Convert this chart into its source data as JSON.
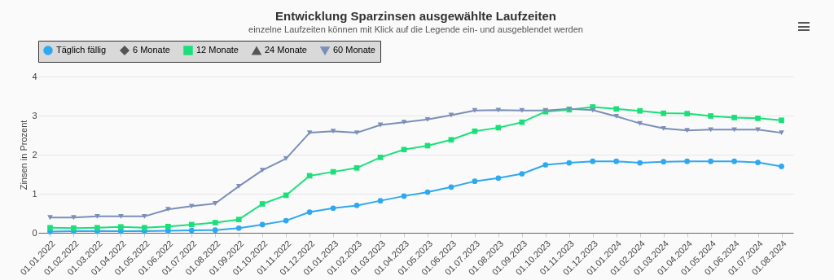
{
  "chart_data": {
    "type": "line",
    "title": "Entwicklung Sparzinsen ausgewählte Laufzeiten",
    "subtitle": "einzelne Laufzeiten können mit Klick auf die Legende ein- und ausgeblendet werden",
    "ylabel": "Zinsen in Prozent",
    "categories": [
      "01.01.2022",
      "01.02.2022",
      "01.03.2022",
      "01.04.2022",
      "01.05.2022",
      "01.06.2022",
      "01.07.2022",
      "01.08.2022",
      "01.09.2022",
      "01.10.2022",
      "01.11.2022",
      "01.12.2022",
      "01.01.2023",
      "01.02.2023",
      "01.03.2023",
      "01.04.2023",
      "01.05.2023",
      "01.06.2023",
      "01.07.2023",
      "01.08.2023",
      "01.09.2023",
      "01.10.2023",
      "01.11.2023",
      "01.12.2023",
      "01.01.2024",
      "01.02.2024",
      "01.03.2024",
      "01.04.2024",
      "01.05.2024",
      "01.06.2024",
      "01.07.2024",
      "01.08.2024"
    ],
    "series": [
      {
        "name": "Täglich fällig",
        "color": "#2ea8f0",
        "marker": "circle",
        "values": [
          0.03,
          0.04,
          0.04,
          0.04,
          0.04,
          0.05,
          0.06,
          0.07,
          0.12,
          0.21,
          0.31,
          0.53,
          0.63,
          0.7,
          0.82,
          0.94,
          1.04,
          1.17,
          1.32,
          1.4,
          1.51,
          1.74,
          1.79,
          1.83,
          1.83,
          1.79,
          1.82,
          1.83,
          1.83,
          1.83,
          1.8,
          1.7
        ]
      },
      {
        "name": "6 Monate",
        "color": "#555555",
        "marker": "diamond",
        "values": [
          null,
          null,
          null,
          null,
          null,
          null,
          null,
          null,
          null,
          null,
          null,
          null,
          null,
          null,
          null,
          null,
          null,
          null,
          null,
          null,
          null,
          null,
          null,
          null,
          null,
          null,
          null,
          null,
          null,
          null,
          null,
          null
        ]
      },
      {
        "name": "12 Monate",
        "color": "#1be07a",
        "marker": "square",
        "values": [
          0.13,
          0.12,
          0.13,
          0.15,
          0.13,
          0.16,
          0.21,
          0.26,
          0.34,
          0.74,
          0.96,
          1.46,
          1.56,
          1.66,
          1.93,
          2.13,
          2.23,
          2.38,
          2.6,
          2.69,
          2.83,
          3.1,
          3.15,
          3.22,
          3.17,
          3.12,
          3.06,
          3.05,
          2.99,
          2.95,
          2.93,
          2.88
        ]
      },
      {
        "name": "24 Monate",
        "color": "#555555",
        "marker": "triangle",
        "values": [
          null,
          null,
          null,
          null,
          null,
          null,
          null,
          null,
          null,
          null,
          null,
          null,
          null,
          null,
          null,
          null,
          null,
          null,
          null,
          null,
          null,
          null,
          null,
          null,
          null,
          null,
          null,
          null,
          null,
          null,
          null,
          null
        ]
      },
      {
        "name": "60 Monate",
        "color": "#7b8fb8",
        "marker": "triangle-down",
        "values": [
          0.39,
          0.39,
          0.42,
          0.42,
          0.42,
          0.6,
          0.68,
          0.75,
          1.19,
          1.6,
          1.9,
          2.56,
          2.6,
          2.56,
          2.76,
          2.83,
          2.9,
          3.01,
          3.13,
          3.14,
          3.13,
          3.13,
          3.17,
          3.14,
          2.98,
          2.8,
          2.67,
          2.62,
          2.64,
          2.64,
          2.64,
          2.56
        ]
      }
    ],
    "ylim": [
      0,
      4
    ],
    "yticks": [
      0,
      1,
      2,
      3,
      4
    ],
    "grid": "y",
    "legend": "top",
    "line_style": "solid"
  }
}
